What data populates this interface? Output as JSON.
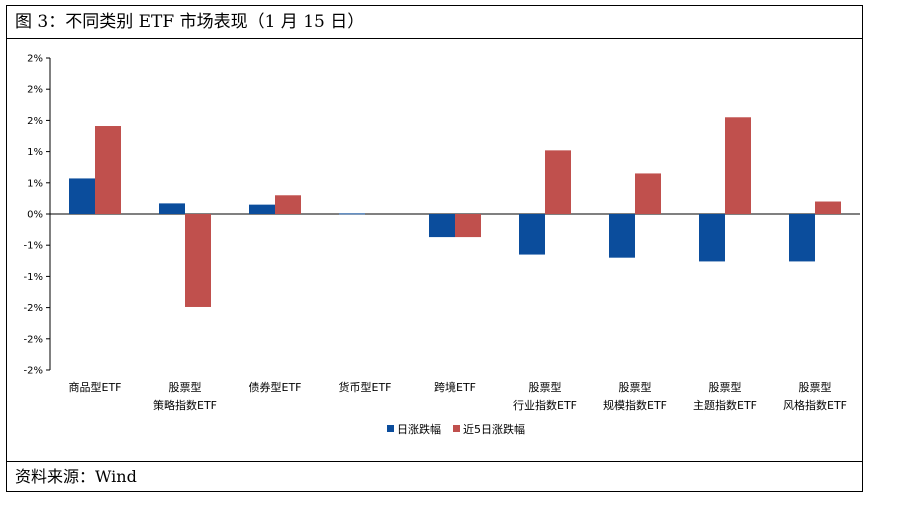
{
  "header": {
    "title": "图 3：不同类别 ETF 市场表现（1 月 15 日）"
  },
  "footer": {
    "source": "资料来源：Wind"
  },
  "chart_data": {
    "type": "bar",
    "title": "",
    "xlabel": "",
    "ylabel": "",
    "ylim": [
      -2.5,
      2.5
    ],
    "yticks": [
      -2.5,
      -2,
      -1.5,
      -1,
      -0.5,
      0,
      0.5,
      1,
      1.5,
      2,
      2.5
    ],
    "ytick_labels": [
      "-2%",
      "-2%",
      "-2%",
      "-1%",
      "-1%",
      "0%",
      "1%",
      "1%",
      "2%",
      "2%",
      "2%"
    ],
    "grid": false,
    "legend_position": "bottom",
    "categories": [
      [
        "商品型ETF"
      ],
      [
        "股票型",
        "策略指数ETF"
      ],
      [
        "债券型ETF"
      ],
      [
        "货币型ETF"
      ],
      [
        "跨境ETF"
      ],
      [
        "股票型",
        "行业指数ETF"
      ],
      [
        "股票型",
        "规模指数ETF"
      ],
      [
        "股票型",
        "主题指数ETF"
      ],
      [
        "股票型",
        "风格指数ETF"
      ]
    ],
    "series": [
      {
        "name": "日涨跌幅",
        "color": "#0b4d9c",
        "values": [
          0.57,
          0.17,
          0.15,
          0.01,
          -0.37,
          -0.65,
          -0.7,
          -0.76,
          -0.76
        ]
      },
      {
        "name": "近5日涨跌幅",
        "color": "#c0504d",
        "values": [
          1.41,
          -1.49,
          0.3,
          0.0,
          -0.37,
          1.02,
          0.65,
          1.55,
          0.2
        ]
      }
    ]
  }
}
